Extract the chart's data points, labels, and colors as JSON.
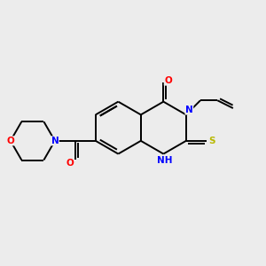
{
  "bg_color": "#ececec",
  "atom_colors": {
    "N": "#0000ff",
    "O": "#ff0000",
    "S": "#b8b800",
    "C": "#000000"
  },
  "bond_color": "#000000",
  "bond_width": 1.4,
  "fig_size": [
    3.0,
    3.0
  ],
  "dpi": 100,
  "xlim": [
    0,
    10
  ],
  "ylim": [
    0,
    10
  ]
}
